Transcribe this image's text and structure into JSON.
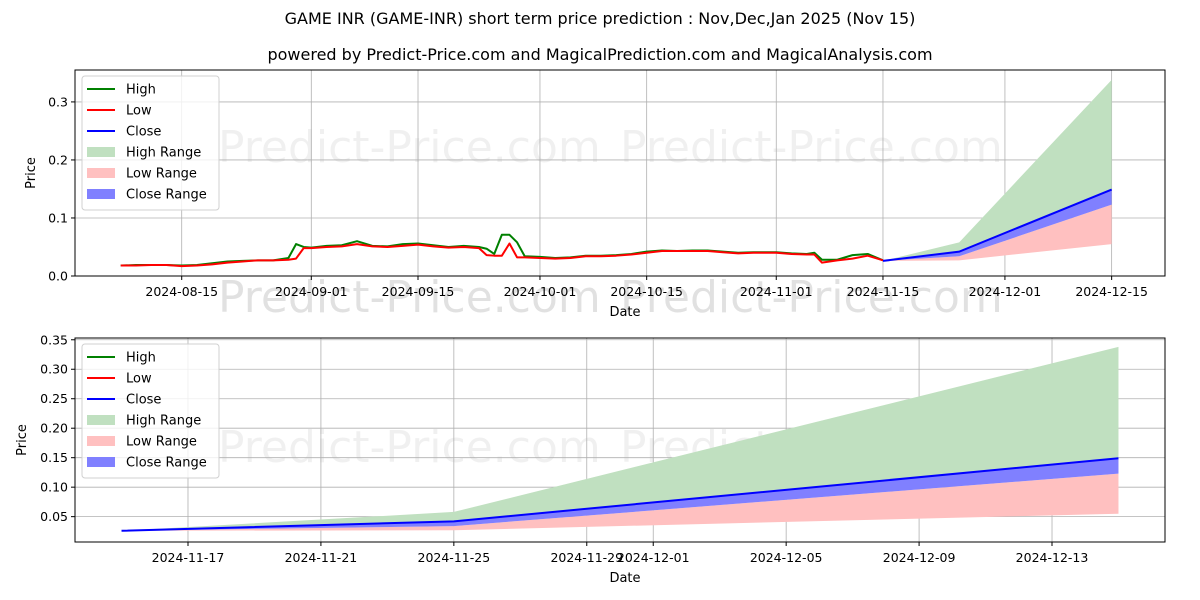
{
  "header": {
    "title": "GAME INR (GAME-INR) short term price prediction : Nov,Dec,Jan 2025 (Nov 15)",
    "subtitle": "powered by Predict-Price.com and MagicalPrediction.com and MagicalAnalysis.com"
  },
  "watermark": "Predict-Price.com",
  "colors": {
    "high": "#008000",
    "low": "#ff0000",
    "close": "#0000ff",
    "high_range": "#c0e0c0",
    "low_range": "#ffc0c0",
    "close_range": "#8080ff",
    "grid": "#b0b0b0"
  },
  "legend": {
    "items": [
      {
        "label": "High",
        "kind": "line",
        "color": "#008000"
      },
      {
        "label": "Low",
        "kind": "line",
        "color": "#ff0000"
      },
      {
        "label": "Close",
        "kind": "line",
        "color": "#0000ff"
      },
      {
        "label": "High Range",
        "kind": "patch",
        "color": "#c0e0c0"
      },
      {
        "label": "Low Range",
        "kind": "patch",
        "color": "#ffc0c0"
      },
      {
        "label": "Close Range",
        "kind": "patch",
        "color": "#8080ff"
      }
    ]
  },
  "chart_data": [
    {
      "type": "line",
      "title": "",
      "xlabel": "Date",
      "ylabel": "Price",
      "ylim": [
        0.0,
        0.355
      ],
      "xlim": [
        "2024-08-01",
        "2024-12-22"
      ],
      "grid": true,
      "legend_position": "upper left",
      "yticks": [
        0.0,
        0.1,
        0.2,
        0.3
      ],
      "ytick_labels": [
        "0.0",
        "0.1",
        "0.2",
        "0.3"
      ],
      "xticks": [
        "2024-08-15",
        "2024-09-01",
        "2024-09-15",
        "2024-10-01",
        "2024-10-15",
        "2024-11-01",
        "2024-11-15",
        "2024-12-01",
        "2024-12-15"
      ],
      "history": {
        "dates": [
          "2024-08-07",
          "2024-08-09",
          "2024-08-11",
          "2024-08-13",
          "2024-08-15",
          "2024-08-17",
          "2024-08-19",
          "2024-08-21",
          "2024-08-23",
          "2024-08-25",
          "2024-08-27",
          "2024-08-29",
          "2024-08-30",
          "2024-08-31",
          "2024-09-01",
          "2024-09-03",
          "2024-09-05",
          "2024-09-07",
          "2024-09-09",
          "2024-09-11",
          "2024-09-13",
          "2024-09-15",
          "2024-09-17",
          "2024-09-19",
          "2024-09-21",
          "2024-09-23",
          "2024-09-24",
          "2024-09-25",
          "2024-09-26",
          "2024-09-27",
          "2024-09-28",
          "2024-09-29",
          "2024-10-01",
          "2024-10-03",
          "2024-10-05",
          "2024-10-07",
          "2024-10-09",
          "2024-10-11",
          "2024-10-13",
          "2024-10-15",
          "2024-10-17",
          "2024-10-19",
          "2024-10-21",
          "2024-10-23",
          "2024-10-25",
          "2024-10-27",
          "2024-10-29",
          "2024-11-01",
          "2024-11-03",
          "2024-11-05",
          "2024-11-06",
          "2024-11-07",
          "2024-11-09",
          "2024-11-11",
          "2024-11-13",
          "2024-11-15"
        ],
        "high": [
          0.018,
          0.019,
          0.019,
          0.019,
          0.018,
          0.019,
          0.022,
          0.025,
          0.026,
          0.027,
          0.027,
          0.031,
          0.055,
          0.05,
          0.049,
          0.052,
          0.053,
          0.06,
          0.052,
          0.051,
          0.055,
          0.056,
          0.053,
          0.05,
          0.052,
          0.05,
          0.047,
          0.038,
          0.071,
          0.071,
          0.058,
          0.034,
          0.033,
          0.031,
          0.032,
          0.035,
          0.035,
          0.036,
          0.038,
          0.042,
          0.044,
          0.043,
          0.044,
          0.044,
          0.042,
          0.04,
          0.041,
          0.041,
          0.039,
          0.038,
          0.04,
          0.028,
          0.028,
          0.036,
          0.038,
          0.027
        ],
        "low": [
          0.018,
          0.018,
          0.019,
          0.019,
          0.017,
          0.018,
          0.02,
          0.023,
          0.025,
          0.027,
          0.027,
          0.028,
          0.03,
          0.048,
          0.048,
          0.05,
          0.051,
          0.055,
          0.051,
          0.05,
          0.052,
          0.054,
          0.051,
          0.049,
          0.05,
          0.048,
          0.036,
          0.035,
          0.035,
          0.056,
          0.032,
          0.032,
          0.031,
          0.03,
          0.031,
          0.034,
          0.034,
          0.035,
          0.037,
          0.04,
          0.043,
          0.043,
          0.043,
          0.043,
          0.041,
          0.039,
          0.04,
          0.04,
          0.038,
          0.037,
          0.037,
          0.023,
          0.027,
          0.03,
          0.035,
          0.027
        ]
      },
      "forecast": {
        "dates": [
          "2024-11-15",
          "2024-11-25",
          "2024-12-15"
        ],
        "close": [
          0.026,
          0.042,
          0.149
        ],
        "high_range_top": [
          0.026,
          0.058,
          0.338
        ],
        "close_range_bottom": [
          0.026,
          0.034,
          0.123
        ],
        "low_range_bottom": [
          0.026,
          0.027,
          0.055
        ]
      }
    },
    {
      "type": "area",
      "title": "",
      "xlabel": "Date",
      "ylabel": "Price",
      "ylim": [
        0.007,
        0.353
      ],
      "xlim": [
        "2024-11-13.6",
        "2024-12-16.4"
      ],
      "grid": true,
      "legend_position": "upper left",
      "yticks": [
        0.05,
        0.1,
        0.15,
        0.2,
        0.25,
        0.3,
        0.35
      ],
      "ytick_labels": [
        "0.05",
        "0.10",
        "0.15",
        "0.20",
        "0.25",
        "0.30",
        "0.35"
      ],
      "xticks": [
        "2024-11-17",
        "2024-11-21",
        "2024-11-25",
        "2024-11-29",
        "2024-12-01",
        "2024-12-05",
        "2024-12-09",
        "2024-12-13"
      ],
      "forecast": {
        "dates": [
          "2024-11-15",
          "2024-11-25",
          "2024-12-15"
        ],
        "close": [
          0.026,
          0.042,
          0.149
        ],
        "high_range_top": [
          0.026,
          0.058,
          0.338
        ],
        "close_range_bottom": [
          0.026,
          0.034,
          0.123
        ],
        "low_range_bottom": [
          0.026,
          0.027,
          0.055
        ]
      }
    }
  ]
}
